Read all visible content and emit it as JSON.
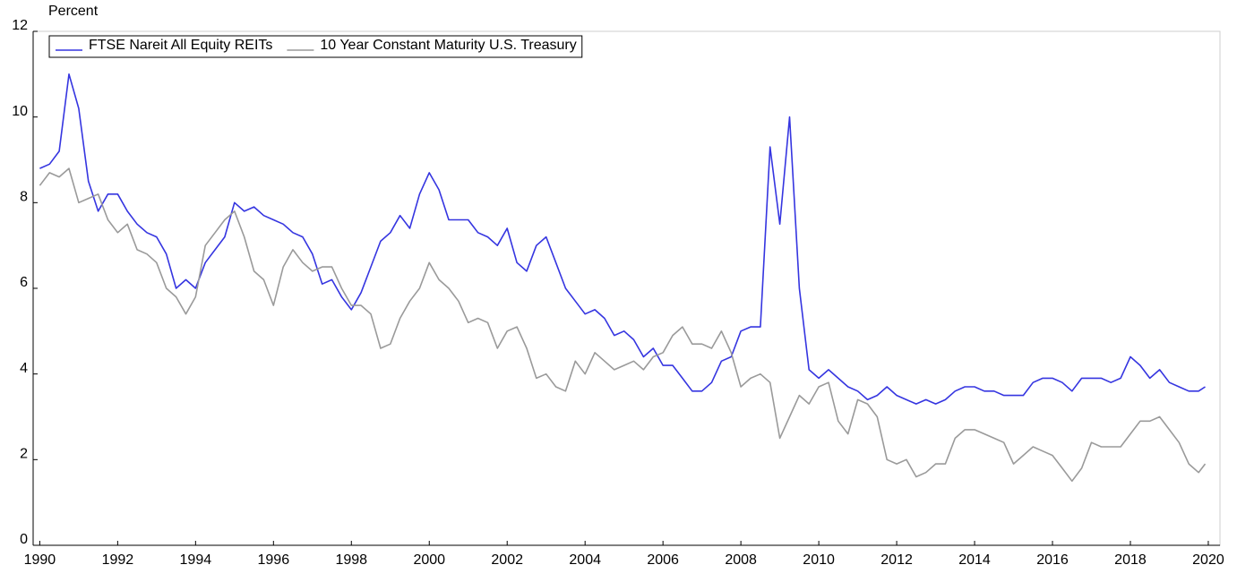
{
  "chart_data": {
    "type": "line",
    "y_label": "Percent",
    "legend": "top-left",
    "grid": false,
    "xlim": [
      1989.83,
      2020.3
    ],
    "ylim": [
      0,
      12
    ],
    "xticks": [
      1990,
      1992,
      1994,
      1996,
      1998,
      2000,
      2002,
      2004,
      2006,
      2008,
      2010,
      2012,
      2014,
      2016,
      2018,
      2020
    ],
    "yticks": [
      0,
      2,
      4,
      6,
      8,
      10,
      12
    ],
    "x": [
      1990,
      1990.25,
      1990.5,
      1990.75,
      1991,
      1991.25,
      1991.5,
      1991.75,
      1992,
      1992.25,
      1992.5,
      1992.75,
      1993,
      1993.25,
      1993.5,
      1993.75,
      1994,
      1994.25,
      1994.5,
      1994.75,
      1995,
      1995.25,
      1995.5,
      1995.75,
      1996,
      1996.25,
      1996.5,
      1996.75,
      1997,
      1997.25,
      1997.5,
      1997.75,
      1998,
      1998.25,
      1998.5,
      1998.75,
      1999,
      1999.25,
      1999.5,
      1999.75,
      2000,
      2000.25,
      2000.5,
      2000.75,
      2001,
      2001.25,
      2001.5,
      2001.75,
      2002,
      2002.25,
      2002.5,
      2002.75,
      2003,
      2003.25,
      2003.5,
      2003.75,
      2004,
      2004.25,
      2004.5,
      2004.75,
      2005,
      2005.25,
      2005.5,
      2005.75,
      2006,
      2006.25,
      2006.5,
      2006.75,
      2007,
      2007.25,
      2007.5,
      2007.75,
      2008,
      2008.25,
      2008.5,
      2008.75,
      2009,
      2009.25,
      2009.5,
      2009.75,
      2010,
      2010.25,
      2010.5,
      2010.75,
      2011,
      2011.25,
      2011.5,
      2011.75,
      2012,
      2012.25,
      2012.5,
      2012.75,
      2013,
      2013.25,
      2013.5,
      2013.75,
      2014,
      2014.25,
      2014.5,
      2014.75,
      2015,
      2015.25,
      2015.5,
      2015.75,
      2016,
      2016.25,
      2016.5,
      2016.75,
      2017,
      2017.25,
      2017.5,
      2017.75,
      2018,
      2018.25,
      2018.5,
      2018.75,
      2019,
      2019.25,
      2019.5,
      2019.75,
      2019.92
    ],
    "series": [
      {
        "name": "FTSE Nareit All Equity REITs",
        "color": "#3535e0",
        "values": [
          8.8,
          8.9,
          9.2,
          11.0,
          10.2,
          8.5,
          7.8,
          8.2,
          8.2,
          7.8,
          7.5,
          7.3,
          7.2,
          6.8,
          6.0,
          6.2,
          6.0,
          6.6,
          6.9,
          7.2,
          8.0,
          7.8,
          7.9,
          7.7,
          7.6,
          7.5,
          7.3,
          7.2,
          6.8,
          6.1,
          6.2,
          5.8,
          5.5,
          5.9,
          6.5,
          7.1,
          7.3,
          7.7,
          7.4,
          8.2,
          8.7,
          8.3,
          7.6,
          7.6,
          7.6,
          7.3,
          7.2,
          7.0,
          7.4,
          6.6,
          6.4,
          7.0,
          7.2,
          6.6,
          6.0,
          5.7,
          5.4,
          5.5,
          5.3,
          4.9,
          5.0,
          4.8,
          4.4,
          4.6,
          4.2,
          4.2,
          3.9,
          3.6,
          3.6,
          3.8,
          4.3,
          4.4,
          5.0,
          5.1,
          5.1,
          9.3,
          7.5,
          10.0,
          6.0,
          4.1,
          3.9,
          4.1,
          3.9,
          3.7,
          3.6,
          3.4,
          3.5,
          3.7,
          3.5,
          3.4,
          3.3,
          3.4,
          3.3,
          3.4,
          3.6,
          3.7,
          3.7,
          3.6,
          3.6,
          3.5,
          3.5,
          3.5,
          3.8,
          3.9,
          3.9,
          3.8,
          3.6,
          3.9,
          3.9,
          3.9,
          3.8,
          3.9,
          4.4,
          4.2,
          3.9,
          4.1,
          3.8,
          3.7,
          3.6,
          3.6,
          3.7
        ]
      },
      {
        "name": "10 Year Constant Maturity U.S. Treasury",
        "color": "#9a9a9a",
        "values": [
          8.4,
          8.7,
          8.6,
          8.8,
          8.0,
          8.1,
          8.2,
          7.6,
          7.3,
          7.5,
          6.9,
          6.8,
          6.6,
          6.0,
          5.8,
          5.4,
          5.8,
          7.0,
          7.3,
          7.6,
          7.8,
          7.2,
          6.4,
          6.2,
          5.6,
          6.5,
          6.9,
          6.6,
          6.4,
          6.5,
          6.5,
          6.0,
          5.6,
          5.6,
          5.4,
          4.6,
          4.7,
          5.3,
          5.7,
          6.0,
          6.6,
          6.2,
          6.0,
          5.7,
          5.2,
          5.3,
          5.2,
          4.6,
          5.0,
          5.1,
          4.6,
          3.9,
          4.0,
          3.7,
          3.6,
          4.3,
          4.0,
          4.5,
          4.3,
          4.1,
          4.2,
          4.3,
          4.1,
          4.4,
          4.5,
          4.9,
          5.1,
          4.7,
          4.7,
          4.6,
          5.0,
          4.5,
          3.7,
          3.9,
          4.0,
          3.8,
          2.5,
          3.0,
          3.5,
          3.3,
          3.7,
          3.8,
          2.9,
          2.6,
          3.4,
          3.3,
          3.0,
          2.0,
          1.9,
          2.0,
          1.6,
          1.7,
          1.9,
          1.9,
          2.5,
          2.7,
          2.7,
          2.6,
          2.5,
          2.4,
          1.9,
          2.1,
          2.3,
          2.2,
          2.1,
          1.8,
          1.5,
          1.8,
          2.4,
          2.3,
          2.3,
          2.3,
          2.6,
          2.9,
          2.9,
          3.0,
          2.7,
          2.4,
          1.9,
          1.7,
          1.9
        ]
      }
    ]
  }
}
